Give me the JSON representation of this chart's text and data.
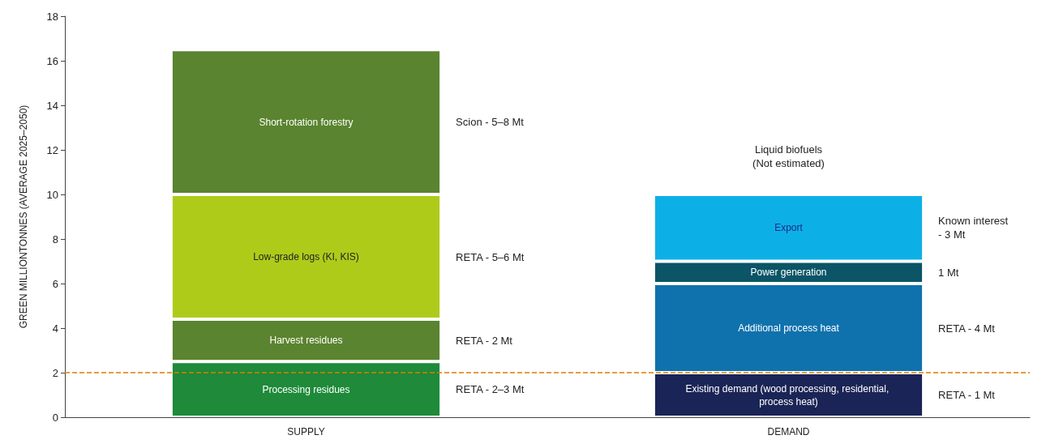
{
  "chart_data": {
    "type": "bar",
    "stacked": true,
    "ylabel": "GREEN MILLIONTONNES (AVERAGE 2025–2050)",
    "categories": [
      "SUPPLY",
      "DEMAND"
    ],
    "series": [
      {
        "name": "Processing residues",
        "color": "#1e8a3a",
        "values": [
          2.5,
          null
        ]
      },
      {
        "name": "Harvest residues",
        "color": "#5a842f",
        "values": [
          1.9,
          null
        ]
      },
      {
        "name": "Low-grade logs (KI, KIS)",
        "color": "#afcb1a",
        "values": [
          5.6,
          null
        ]
      },
      {
        "name": "Short-rotation forestry",
        "color": "#5a842f",
        "values": [
          6.5,
          null
        ]
      },
      {
        "name": "Existing demand (wood processing, residential, process heat)",
        "color": "#1b2456",
        "values": [
          null,
          2
        ]
      },
      {
        "name": "Additional process heat",
        "color": "#0f72ad",
        "values": [
          null,
          4
        ]
      },
      {
        "name": "Power generation",
        "color": "#0b5567",
        "values": [
          null,
          1
        ]
      },
      {
        "name": "Export",
        "color": "#0db0e6",
        "values": [
          null,
          3
        ]
      }
    ],
    "ylim": [
      0,
      18
    ],
    "yticks": [
      0,
      2,
      4,
      6,
      8,
      10,
      12,
      14,
      16,
      18
    ],
    "legend": false,
    "ref_lines": [
      {
        "axis": "y",
        "value": 2,
        "color": "#e07b00",
        "line_style": "dashed"
      }
    ],
    "annotations": [
      "RETA - 2–3 Mt",
      "RETA - 2 Mt",
      "RETA - 5–6 Mt",
      "Scion - 5–8 Mt",
      "RETA - 1 Mt",
      "RETA - 4 Mt",
      "1 Mt",
      "Known interest\n- 3 Mt",
      "Liquid biofuels\n(Not estimated)"
    ]
  }
}
